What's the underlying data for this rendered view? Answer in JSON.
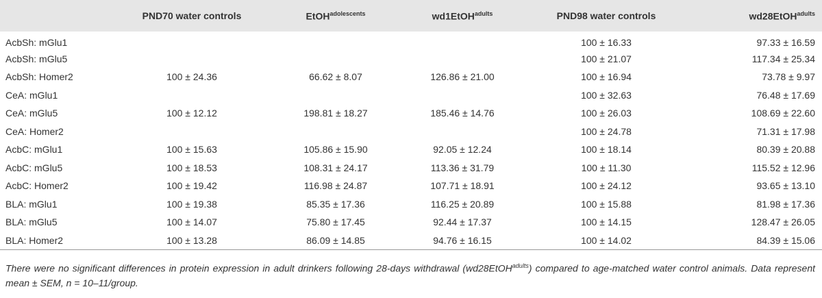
{
  "table": {
    "header": [
      null,
      {
        "text": "PND70 water controls"
      },
      {
        "text": "EtOH",
        "sup": "adolescents"
      },
      {
        "text": "wd1EtOH",
        "sup": "adults"
      },
      {
        "text": "PND98 water controls"
      },
      {
        "text": "wd28EtOH",
        "sup": "adults"
      }
    ],
    "rows": [
      [
        "AcbSh: mGlu1",
        null,
        null,
        null,
        "100 ± 16.33",
        "97.33 ± 16.59"
      ],
      [
        "AcbSh: mGlu5",
        null,
        null,
        null,
        "100 ± 21.07",
        "117.34 ± 25.34"
      ],
      [
        "AcbSh: Homer2",
        "100 ± 24.36",
        "66.62 ± 8.07",
        "126.86 ± 21.00",
        "100 ± 16.94",
        "73.78 ± 9.97"
      ],
      [
        "CeA: mGlu1",
        null,
        null,
        null,
        "100 ± 32.63",
        "76.48 ± 17.69"
      ],
      [
        "CeA: mGlu5",
        "100 ± 12.12",
        "198.81 ± 18.27",
        "185.46 ± 14.76",
        "100 ± 26.03",
        "108.69 ± 22.60"
      ],
      [
        "CeA: Homer2",
        null,
        null,
        null,
        "100 ± 24.78",
        "71.31 ± 17.98"
      ],
      [
        "AcbC: mGlu1",
        "100 ± 15.63",
        "105.86 ± 15.90",
        "92.05 ± 12.24",
        "100 ± 18.14",
        "80.39 ± 20.88"
      ],
      [
        "AcbC: mGlu5",
        "100 ± 18.53",
        "108.31 ± 24.17",
        "113.36 ± 31.79",
        "100 ± 11.30",
        "115.52 ± 12.96"
      ],
      [
        "AcbC: Homer2",
        "100 ± 19.42",
        "116.98 ± 24.87",
        "107.71 ± 18.91",
        "100 ± 24.12",
        "93.65 ± 13.10"
      ],
      [
        "BLA: mGlu1",
        "100 ± 19.38",
        "85.35 ± 17.36",
        "116.25 ± 20.89",
        "100 ± 15.88",
        "81.98 ± 17.36"
      ],
      [
        "BLA: mGlu5",
        "100 ± 14.07",
        "75.80 ± 17.45",
        "92.44 ± 17.37",
        "100 ± 14.15",
        "128.47 ± 26.05"
      ],
      [
        "BLA: Homer2",
        "100 ± 13.28",
        "86.09 ± 14.85",
        "94.76 ± 16.15",
        "100 ± 14.02",
        "84.39 ± 15.06"
      ]
    ]
  },
  "footnote": {
    "before": "There were no significant differences in protein expression in adult drinkers following 28-days withdrawal (wd28EtOH",
    "sup": "adults",
    "after": ") compared to age-matched water control animals. Data represent mean ± SEM, n = 10–11/group."
  }
}
